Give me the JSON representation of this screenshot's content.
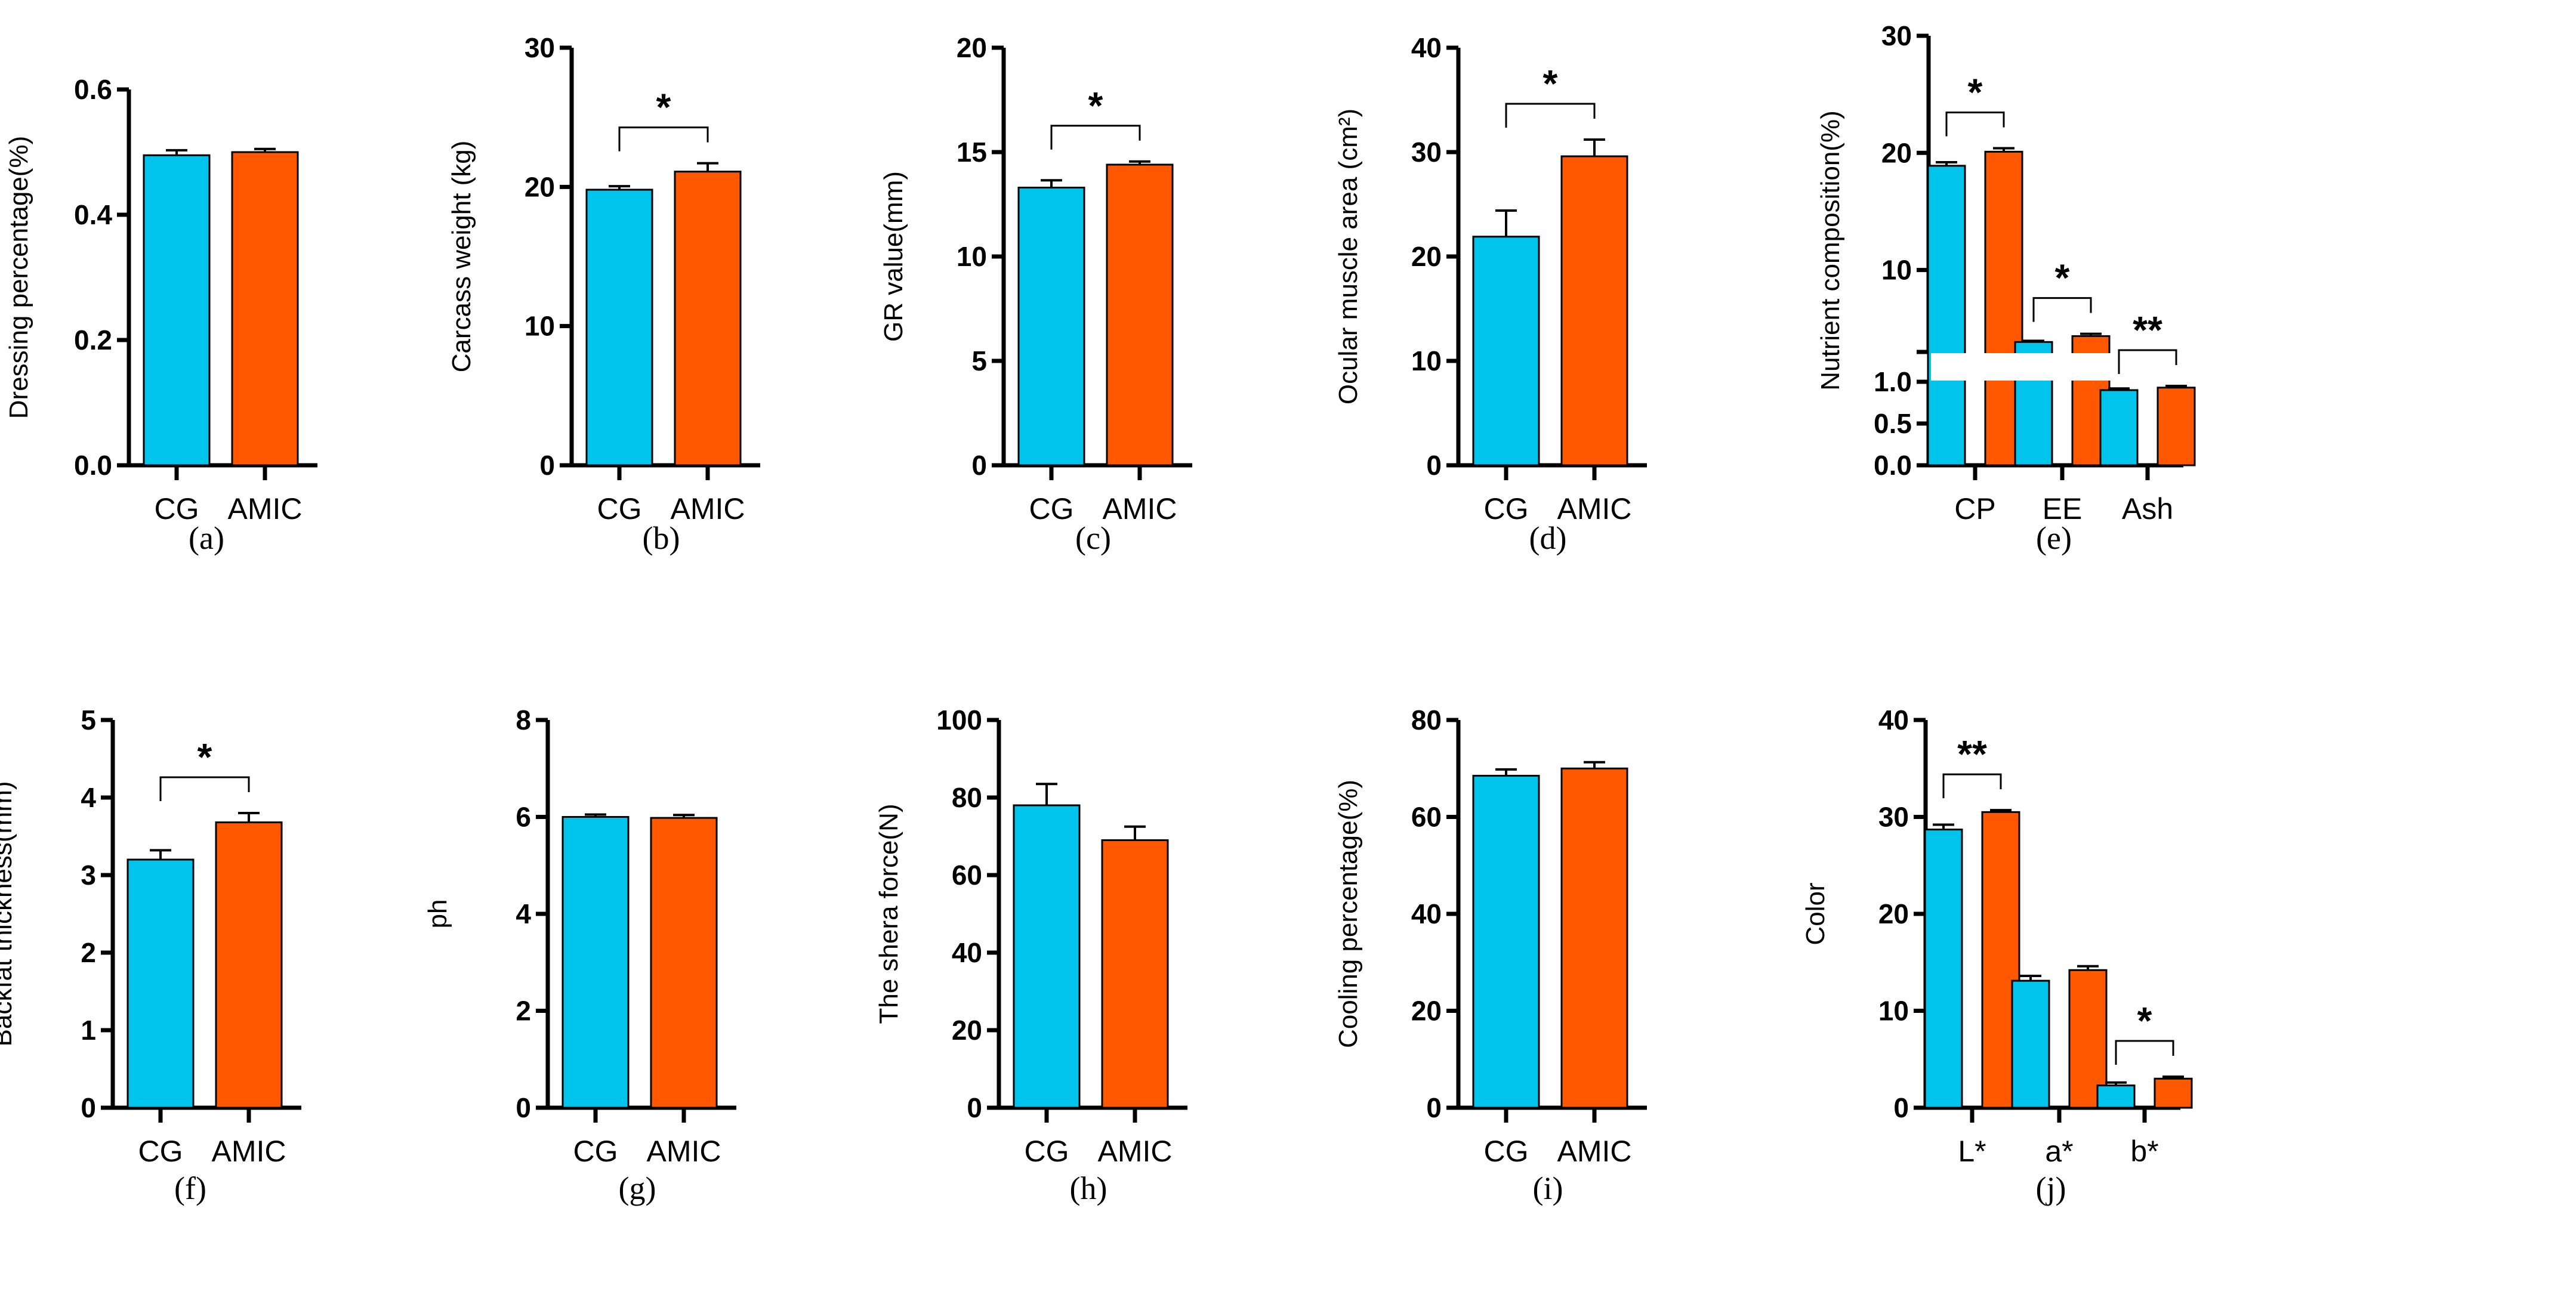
{
  "colors": {
    "CG": "#00C4EC",
    "AMIC": "#FF5800",
    "axis": "#000000"
  },
  "chart_data": [
    {
      "type": "bar",
      "panel": "(a)",
      "ylabel": "Dressing percentage(%)",
      "ylim": [
        0,
        0.6
      ],
      "yticks": [
        0.0,
        0.2,
        0.4,
        0.6
      ],
      "tick_decimals": 1,
      "categories": [
        "CG",
        "AMIC"
      ],
      "values": [
        0.495,
        0.5
      ],
      "errors": [
        0.008,
        0.005
      ],
      "significance": []
    },
    {
      "type": "bar",
      "panel": "(b)",
      "ylabel": "Carcass weight (kg)",
      "ylim": [
        0,
        30
      ],
      "yticks": [
        0,
        10,
        20,
        30
      ],
      "tick_decimals": 0,
      "categories": [
        "CG",
        "AMIC"
      ],
      "values": [
        19.8,
        21.1
      ],
      "errors": [
        0.25,
        0.6
      ],
      "significance": [
        {
          "group": 0,
          "label": "*"
        }
      ]
    },
    {
      "type": "bar",
      "panel": "(c)",
      "ylabel": "GR value(mm)",
      "ylim": [
        0,
        20
      ],
      "yticks": [
        0,
        5,
        10,
        15,
        20
      ],
      "tick_decimals": 0,
      "categories": [
        "CG",
        "AMIC"
      ],
      "values": [
        13.3,
        14.4
      ],
      "errors": [
        0.35,
        0.15
      ],
      "significance": [
        {
          "group": 0,
          "label": "*"
        }
      ]
    },
    {
      "type": "bar",
      "panel": "(d)",
      "ylabel": "Ocular muscle area (cm²)",
      "ylim": [
        0,
        40
      ],
      "yticks": [
        0,
        10,
        20,
        30,
        40
      ],
      "tick_decimals": 0,
      "categories": [
        "CG",
        "AMIC"
      ],
      "values": [
        21.9,
        29.6
      ],
      "errors": [
        2.5,
        1.6
      ],
      "significance": [
        {
          "group": 0,
          "label": "*"
        }
      ]
    },
    {
      "type": "bar",
      "panel": "(e)",
      "ylabel": "Nutrient composition(%)",
      "ylim": [
        0,
        30
      ],
      "axis_break": [
        1,
        3
      ],
      "yticks": [
        0.0,
        0.5,
        1.0,
        10,
        20,
        30
      ],
      "tick_labels": [
        "0.0",
        "0.5",
        "1.0",
        "10",
        "20",
        "30"
      ],
      "categories": [
        "CP",
        "EE",
        "Ash"
      ],
      "series": [
        {
          "name": "CG",
          "values": [
            18.9,
            3.85,
            0.9
          ],
          "errors": [
            0.3,
            0.1,
            0.02
          ]
        },
        {
          "name": "AMIC",
          "values": [
            20.1,
            4.35,
            0.93
          ],
          "errors": [
            0.3,
            0.2,
            0.02
          ]
        }
      ],
      "significance": [
        {
          "group": 0,
          "label": "*"
        },
        {
          "group": 1,
          "label": "*"
        },
        {
          "group": 2,
          "label": "**"
        }
      ]
    },
    {
      "type": "bar",
      "panel": "(f)",
      "ylabel": "Backfat thickness(mm)",
      "ylim": [
        0,
        5
      ],
      "yticks": [
        0,
        1,
        2,
        3,
        4,
        5
      ],
      "tick_decimals": 0,
      "categories": [
        "CG",
        "AMIC"
      ],
      "values": [
        3.2,
        3.68
      ],
      "errors": [
        0.12,
        0.12
      ],
      "significance": [
        {
          "group": 0,
          "label": "*"
        }
      ]
    },
    {
      "type": "bar",
      "panel": "(g)",
      "ylabel": "ph",
      "ylim": [
        0,
        8
      ],
      "yticks": [
        0,
        2,
        4,
        6,
        8
      ],
      "tick_decimals": 0,
      "categories": [
        "CG",
        "AMIC"
      ],
      "values": [
        6.0,
        5.98
      ],
      "errors": [
        0.05,
        0.06
      ],
      "significance": []
    },
    {
      "type": "bar",
      "panel": "(h)",
      "ylabel": "The shera force(N)",
      "ylim": [
        0,
        100
      ],
      "yticks": [
        0,
        20,
        40,
        60,
        80,
        100
      ],
      "tick_decimals": 0,
      "categories": [
        "CG",
        "AMIC"
      ],
      "values": [
        78,
        69
      ],
      "errors": [
        5.5,
        3.5
      ],
      "significance": []
    },
    {
      "type": "bar",
      "panel": "(i)",
      "ylabel": "Cooling percentage(%)",
      "ylim": [
        0,
        80
      ],
      "yticks": [
        0,
        20,
        40,
        60,
        80
      ],
      "tick_decimals": 0,
      "categories": [
        "CG",
        "AMIC"
      ],
      "values": [
        68.5,
        70
      ],
      "errors": [
        1.3,
        1.3
      ],
      "significance": []
    },
    {
      "type": "bar",
      "panel": "(j)",
      "ylabel": "Color",
      "ylim": [
        0,
        40
      ],
      "yticks": [
        0,
        10,
        20,
        30,
        40
      ],
      "tick_decimals": 0,
      "categories": [
        "L*",
        "a*",
        "b*"
      ],
      "series": [
        {
          "name": "CG",
          "values": [
            28.7,
            13.1,
            2.3
          ],
          "errors": [
            0.5,
            0.5,
            0.3
          ]
        },
        {
          "name": "AMIC",
          "values": [
            30.5,
            14.2,
            3.0
          ],
          "errors": [
            0.2,
            0.4,
            0.2
          ]
        }
      ],
      "significance": [
        {
          "group": 0,
          "label": "**"
        },
        {
          "group": 2,
          "label": "*"
        }
      ]
    }
  ]
}
